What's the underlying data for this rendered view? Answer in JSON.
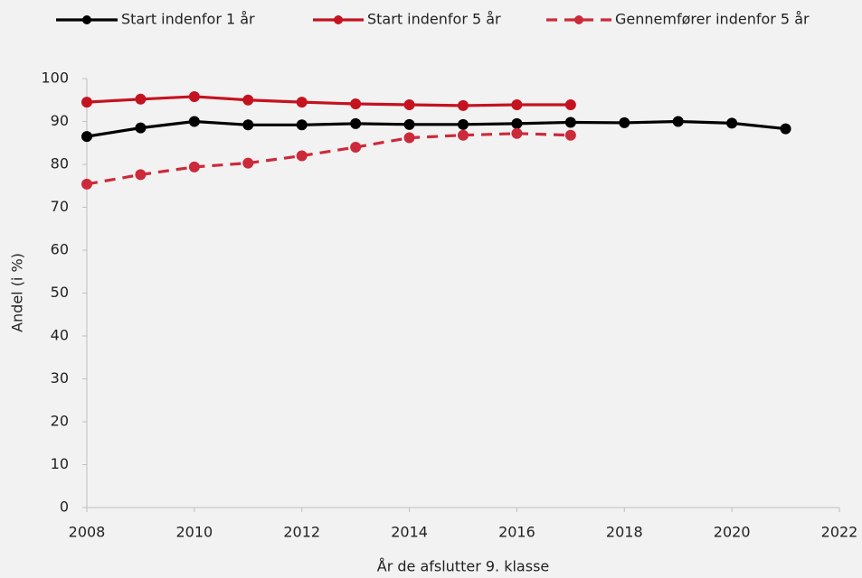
{
  "chart_data": {
    "type": "line",
    "xlabel": "År de afslutter 9. klasse",
    "ylabel": "Andel (i %)",
    "x": [
      2008,
      2009,
      2010,
      2011,
      2012,
      2013,
      2014,
      2015,
      2016,
      2017,
      2018,
      2019,
      2020,
      2021
    ],
    "series": [
      {
        "name": "Start indenfor 1 år",
        "color": "#000000",
        "dashed": false,
        "values": [
          86.5,
          88.5,
          90,
          89.2,
          89.2,
          89.5,
          89.3,
          89.3,
          89.5,
          89.8,
          89.7,
          90,
          89.6,
          88.3
        ]
      },
      {
        "name": "Start indenfor 5 år",
        "color": "#c5121f",
        "dashed": false,
        "values": [
          94.5,
          95.2,
          95.8,
          95,
          94.5,
          94.1,
          93.9,
          93.7,
          93.9,
          93.9,
          null,
          null,
          null,
          null
        ]
      },
      {
        "name": "Gennemfører indenfor 5 år",
        "color": "#cc2a3a",
        "dashed": true,
        "values": [
          75.4,
          77.6,
          79.4,
          80.3,
          82,
          84,
          86.2,
          86.8,
          87.2,
          86.8,
          null,
          null,
          null,
          null
        ]
      }
    ],
    "xlim": [
      2008,
      2022
    ],
    "xticks": [
      2008,
      2010,
      2012,
      2014,
      2016,
      2018,
      2020,
      2022
    ],
    "ylim": [
      0,
      100
    ],
    "yticks": [
      0,
      10,
      20,
      30,
      40,
      50,
      60,
      70,
      80,
      90,
      100
    ],
    "grid": false,
    "legend": "top"
  }
}
